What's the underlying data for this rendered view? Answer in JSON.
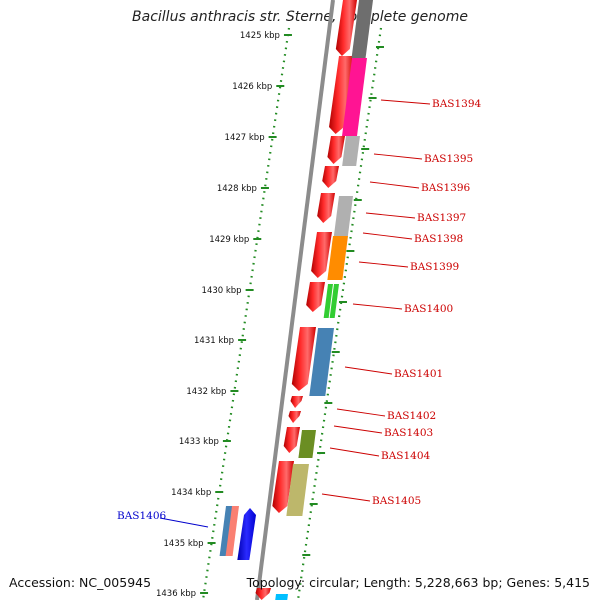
{
  "title": "Bacillus anthracis str. Sterne, complete genome",
  "footer": {
    "accession": "Accession: NC_005945",
    "topology": "Topology: circular; Length: 5,228,663 bp; Genes: 5,415"
  },
  "scale": {
    "unit": "kbp",
    "ticks": [
      "1425 kbp",
      "1426 kbp",
      "1427 kbp",
      "1428 kbp",
      "1429 kbp",
      "1430 kbp",
      "1431 kbp",
      "1432 kbp",
      "1433 kbp",
      "1434 kbp",
      "1435 kbp",
      "1436 kbp"
    ]
  },
  "gene_labels": [
    {
      "text": "BAS1394",
      "color": "#cc0000"
    },
    {
      "text": "BAS1395",
      "color": "#cc0000"
    },
    {
      "text": "BAS1396",
      "color": "#cc0000"
    },
    {
      "text": "BAS1397",
      "color": "#cc0000"
    },
    {
      "text": "BAS1398",
      "color": "#cc0000"
    },
    {
      "text": "BAS1399",
      "color": "#cc0000"
    },
    {
      "text": "BAS1400",
      "color": "#cc0000"
    },
    {
      "text": "BAS1401",
      "color": "#cc0000"
    },
    {
      "text": "BAS1402",
      "color": "#cc0000"
    },
    {
      "text": "BAS1403",
      "color": "#cc0000"
    },
    {
      "text": "BAS1404",
      "color": "#cc0000"
    },
    {
      "text": "BAS1405",
      "color": "#cc0000"
    },
    {
      "text": "BAS1406",
      "color": "#0000cc"
    }
  ],
  "colors": {
    "backbone": "#8c8c8c",
    "scale_dots": "#228b22",
    "strand_forward": "#ff0000",
    "label_red": "#cc0000",
    "label_blue": "#0000cc",
    "magenta": "#ff1493",
    "gray": "#b0b0b0",
    "dark_gray": "#6e6e6e",
    "orange": "#ff8c00",
    "green": "#32cd32",
    "steel_blue": "#4682b4",
    "olive": "#6b8e23",
    "khaki": "#bdb76b",
    "blue": "#0000ff",
    "salmon": "#fa8072",
    "cyan": "#00bfff"
  }
}
